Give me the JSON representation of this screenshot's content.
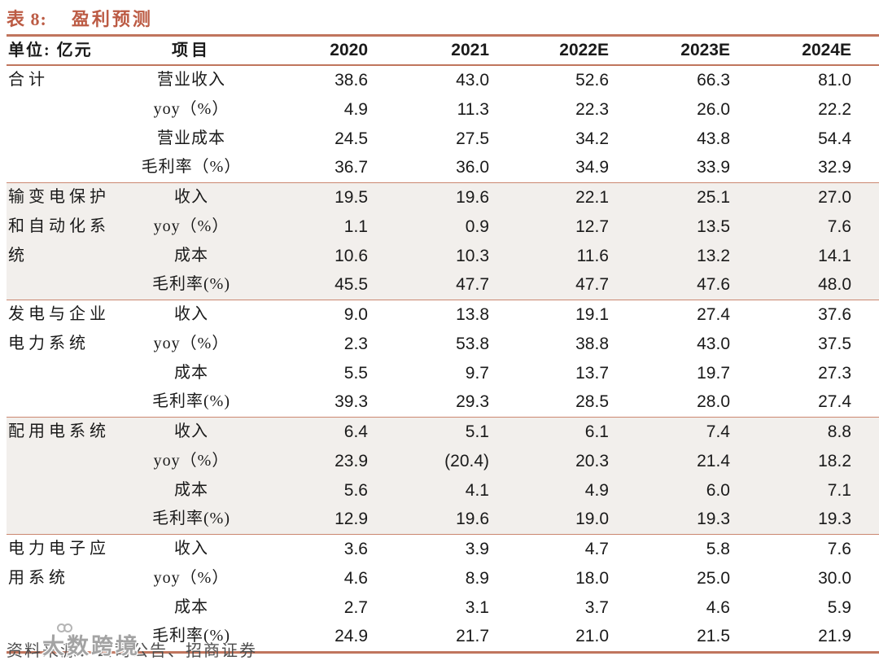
{
  "title": {
    "label": "表 8:",
    "text": "盈利预测"
  },
  "colors": {
    "accent_rust": "#bc5b44",
    "rule_rust": "#c0755d",
    "shaded_row_bg": "#f2efec",
    "text": "#1a1a1a",
    "footer_text": "#4d4d4d"
  },
  "table": {
    "unit_header": "单位: 亿元",
    "item_header": "项目",
    "year_headers": [
      "2020",
      "2021",
      "2022E",
      "2023E",
      "2024E"
    ],
    "sections": [
      {
        "category": "合计",
        "rows": [
          {
            "item": "营业收入",
            "values": [
              "38.6",
              "43.0",
              "52.6",
              "66.3",
              "81.0"
            ]
          },
          {
            "item": "yoy（%）",
            "values": [
              "4.9",
              "11.3",
              "22.3",
              "26.0",
              "22.2"
            ]
          },
          {
            "item": "营业成本",
            "values": [
              "24.5",
              "27.5",
              "34.2",
              "43.8",
              "54.4"
            ]
          },
          {
            "item": "毛利率（%）",
            "values": [
              "36.7",
              "36.0",
              "34.9",
              "33.9",
              "32.9"
            ]
          }
        ]
      },
      {
        "category": "输变电保护和自动化系统",
        "rows": [
          {
            "item": "收入",
            "values": [
              "19.5",
              "19.6",
              "22.1",
              "25.1",
              "27.0"
            ]
          },
          {
            "item": "yoy（%）",
            "values": [
              "1.1",
              "0.9",
              "12.7",
              "13.5",
              "7.6"
            ]
          },
          {
            "item": "成本",
            "values": [
              "10.6",
              "10.3",
              "11.6",
              "13.2",
              "14.1"
            ]
          },
          {
            "item": "毛利率(%)",
            "values": [
              "45.5",
              "47.7",
              "47.7",
              "47.6",
              "48.0"
            ]
          }
        ]
      },
      {
        "category": "发电与企业电力系统",
        "rows": [
          {
            "item": "收入",
            "values": [
              "9.0",
              "13.8",
              "19.1",
              "27.4",
              "37.6"
            ]
          },
          {
            "item": "yoy（%）",
            "values": [
              "2.3",
              "53.8",
              "38.8",
              "43.0",
              "37.5"
            ]
          },
          {
            "item": "成本",
            "values": [
              "5.5",
              "9.7",
              "13.7",
              "19.7",
              "27.3"
            ]
          },
          {
            "item": "毛利率(%)",
            "values": [
              "39.3",
              "29.3",
              "28.5",
              "28.0",
              "27.4"
            ]
          }
        ]
      },
      {
        "category": "配用电系统",
        "rows": [
          {
            "item": "收入",
            "values": [
              "6.4",
              "5.1",
              "6.1",
              "7.4",
              "8.8"
            ]
          },
          {
            "item": "yoy（%）",
            "values": [
              "23.9",
              "(20.4)",
              "20.3",
              "21.4",
              "18.2"
            ]
          },
          {
            "item": "成本",
            "values": [
              "5.6",
              "4.1",
              "4.9",
              "6.0",
              "7.1"
            ]
          },
          {
            "item": "毛利率(%)",
            "values": [
              "12.9",
              "19.6",
              "19.0",
              "19.3",
              "19.3"
            ]
          }
        ]
      },
      {
        "category": "电力电子应用系统",
        "rows": [
          {
            "item": "收入",
            "values": [
              "3.6",
              "3.9",
              "4.7",
              "5.8",
              "7.6"
            ]
          },
          {
            "item": "yoy（%）",
            "values": [
              "4.6",
              "8.9",
              "18.0",
              "25.0",
              "30.0"
            ]
          },
          {
            "item": "成本",
            "values": [
              "2.7",
              "3.1",
              "3.7",
              "4.6",
              "5.9"
            ]
          },
          {
            "item": "毛利率(%)",
            "values": [
              "24.9",
              "21.7",
              "21.0",
              "21.5",
              "21.9"
            ]
          }
        ]
      }
    ]
  },
  "footer": {
    "source": "资料来源：公司公告、招商证券",
    "watermark": "大数跨境"
  }
}
